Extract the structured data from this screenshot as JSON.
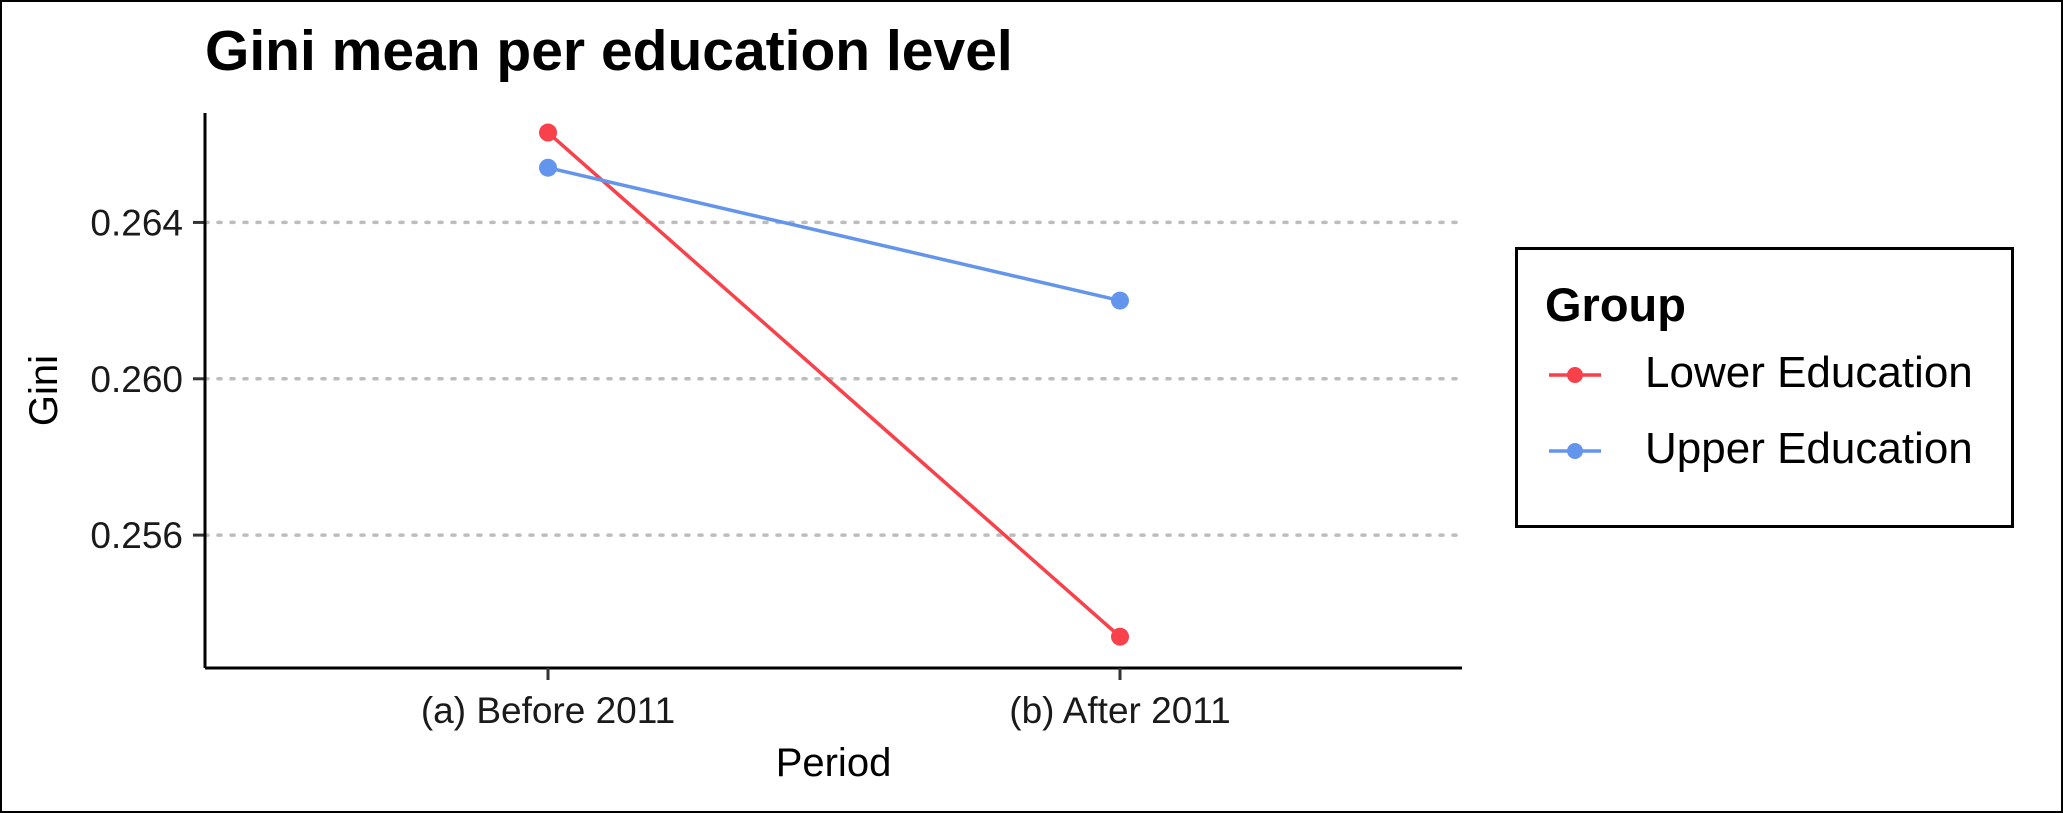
{
  "title": "Gini mean per education level",
  "chart_data": {
    "type": "line",
    "title": "Gini mean per education level",
    "xlabel": "Period",
    "ylabel": "Gini",
    "categories": [
      "(a) Before 2011",
      "(b) After 2011"
    ],
    "y_ticks": [
      0.256,
      0.26,
      0.264
    ],
    "y_tick_labels": [
      "0.256",
      "0.260",
      "0.264"
    ],
    "ylim": [
      0.2526,
      0.2668
    ],
    "grid": "horizontal dotted major lines",
    "legend_title": "Group",
    "legend_position": "right",
    "series": [
      {
        "name": "Lower Education",
        "color": "#F8414A",
        "values": [
          0.2663,
          0.2534
        ]
      },
      {
        "name": "Upper Education",
        "color": "#6495ED",
        "values": [
          0.2654,
          0.262
        ]
      }
    ]
  }
}
